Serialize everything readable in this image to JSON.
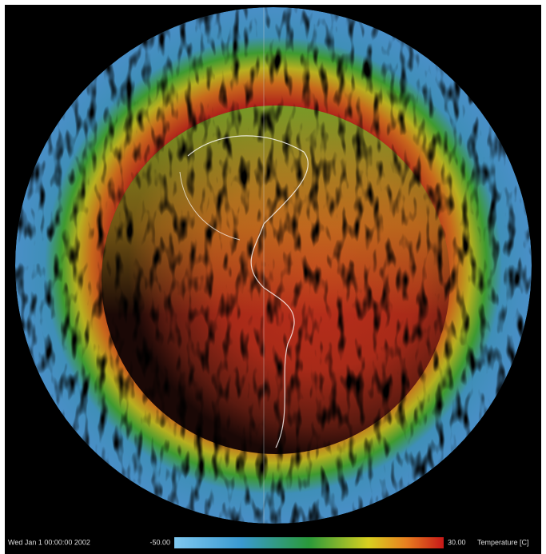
{
  "timestamp": "Wed Jan  1 00:00:00 2002",
  "colorbar": {
    "min_label": "-50.00",
    "max_label": "30.00",
    "title": "Temperature [C]"
  }
}
